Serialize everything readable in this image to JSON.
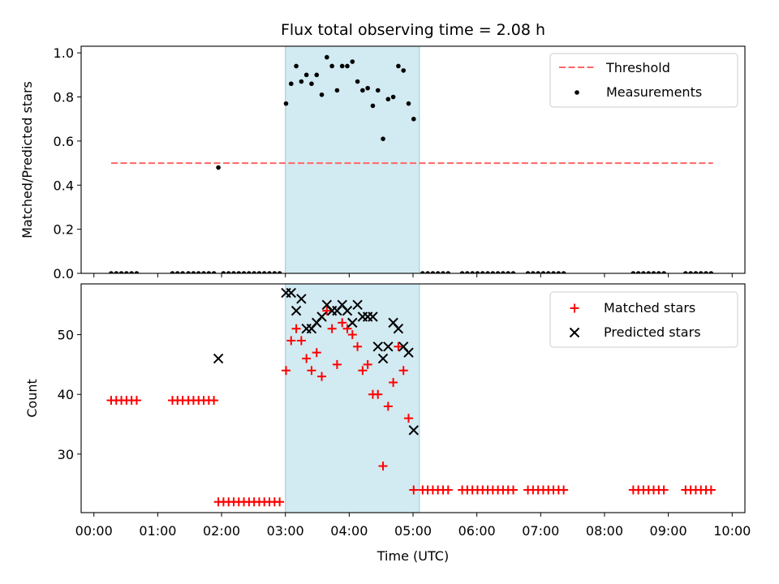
{
  "chart_data": {
    "title": "Flux total observing time = 2.08 h",
    "xlabel": "Time (UTC)",
    "xlim": [
      -0.2,
      10.2
    ],
    "xtick_values": [
      0,
      1,
      2,
      3,
      4,
      5,
      6,
      7,
      8,
      9,
      10
    ],
    "xtick_labels": [
      "00:00",
      "01:00",
      "02:00",
      "03:00",
      "04:00",
      "05:00",
      "06:00",
      "07:00",
      "08:00",
      "09:00",
      "10:00"
    ],
    "highlight_span": [
      3.0,
      5.1
    ],
    "colors": {
      "threshold": "#ff6666",
      "measurement": "#000000",
      "matched": "#ff0000",
      "predicted": "#000000",
      "span": "#add8e6",
      "span_edge": "#9ccad8"
    },
    "panels": [
      {
        "type": "scatter",
        "ylabel": "Matched/Predicted stars",
        "ylim": [
          0,
          1.03
        ],
        "ytick_values": [
          0.0,
          0.2,
          0.4,
          0.6,
          0.8,
          1.0
        ],
        "ytick_labels": [
          "0.0",
          "0.2",
          "0.4",
          "0.6",
          "0.8",
          "1.0"
        ],
        "threshold": {
          "label": "Threshold",
          "y": 0.5,
          "x_range": [
            0.27,
            9.7
          ]
        },
        "measurements": {
          "label": "Measurements",
          "points": [
            [
              0.27,
              0
            ],
            [
              0.35,
              0
            ],
            [
              0.43,
              0
            ],
            [
              0.51,
              0
            ],
            [
              0.59,
              0
            ],
            [
              0.67,
              0
            ],
            [
              1.23,
              0
            ],
            [
              1.31,
              0
            ],
            [
              1.39,
              0
            ],
            [
              1.48,
              0
            ],
            [
              1.56,
              0
            ],
            [
              1.64,
              0
            ],
            [
              1.72,
              0
            ],
            [
              1.8,
              0
            ],
            [
              1.88,
              0
            ],
            [
              1.95,
              0.48
            ],
            [
              2.03,
              0
            ],
            [
              2.11,
              0
            ],
            [
              2.19,
              0
            ],
            [
              2.27,
              0
            ],
            [
              2.35,
              0
            ],
            [
              2.43,
              0
            ],
            [
              2.51,
              0
            ],
            [
              2.59,
              0
            ],
            [
              2.67,
              0
            ],
            [
              2.75,
              0
            ],
            [
              2.83,
              0
            ],
            [
              2.91,
              0
            ],
            [
              3.01,
              0.77
            ],
            [
              3.09,
              0.86
            ],
            [
              3.17,
              0.94
            ],
            [
              3.25,
              0.87
            ],
            [
              3.33,
              0.9
            ],
            [
              3.41,
              0.86
            ],
            [
              3.49,
              0.9
            ],
            [
              3.57,
              0.81
            ],
            [
              3.65,
              0.98
            ],
            [
              3.73,
              0.94
            ],
            [
              3.81,
              0.83
            ],
            [
              3.89,
              0.94
            ],
            [
              3.97,
              0.94
            ],
            [
              4.05,
              0.96
            ],
            [
              4.13,
              0.87
            ],
            [
              4.21,
              0.83
            ],
            [
              4.29,
              0.84
            ],
            [
              4.37,
              0.76
            ],
            [
              4.45,
              0.83
            ],
            [
              4.53,
              0.61
            ],
            [
              4.61,
              0.79
            ],
            [
              4.69,
              0.8
            ],
            [
              4.77,
              0.94
            ],
            [
              4.85,
              0.92
            ],
            [
              4.93,
              0.77
            ],
            [
              5.01,
              0.7
            ],
            [
              5.15,
              0
            ],
            [
              5.23,
              0
            ],
            [
              5.31,
              0
            ],
            [
              5.39,
              0
            ],
            [
              5.47,
              0
            ],
            [
              5.55,
              0
            ],
            [
              5.77,
              0
            ],
            [
              5.85,
              0
            ],
            [
              5.93,
              0
            ],
            [
              6.01,
              0
            ],
            [
              6.09,
              0
            ],
            [
              6.17,
              0
            ],
            [
              6.25,
              0
            ],
            [
              6.33,
              0
            ],
            [
              6.41,
              0
            ],
            [
              6.49,
              0
            ],
            [
              6.57,
              0
            ],
            [
              6.8,
              0
            ],
            [
              6.88,
              0
            ],
            [
              6.96,
              0
            ],
            [
              7.04,
              0
            ],
            [
              7.12,
              0
            ],
            [
              7.2,
              0
            ],
            [
              7.28,
              0
            ],
            [
              7.36,
              0
            ],
            [
              8.45,
              0
            ],
            [
              8.53,
              0
            ],
            [
              8.61,
              0
            ],
            [
              8.69,
              0
            ],
            [
              8.77,
              0
            ],
            [
              8.85,
              0
            ],
            [
              8.93,
              0
            ],
            [
              9.27,
              0
            ],
            [
              9.35,
              0
            ],
            [
              9.43,
              0
            ],
            [
              9.51,
              0
            ],
            [
              9.59,
              0
            ],
            [
              9.67,
              0
            ]
          ]
        }
      },
      {
        "type": "scatter",
        "ylabel": "Count",
        "ylim": [
          20.2,
          58.5
        ],
        "ytick_values": [
          30,
          40,
          50
        ],
        "ytick_labels": [
          "30",
          "40",
          "50"
        ],
        "matched": {
          "label": "Matched stars",
          "points": [
            [
              0.27,
              39
            ],
            [
              0.35,
              39
            ],
            [
              0.43,
              39
            ],
            [
              0.51,
              39
            ],
            [
              0.59,
              39
            ],
            [
              0.67,
              39
            ],
            [
              1.23,
              39
            ],
            [
              1.31,
              39
            ],
            [
              1.39,
              39
            ],
            [
              1.48,
              39
            ],
            [
              1.56,
              39
            ],
            [
              1.64,
              39
            ],
            [
              1.72,
              39
            ],
            [
              1.8,
              39
            ],
            [
              1.88,
              39
            ],
            [
              1.95,
              22
            ],
            [
              2.03,
              22
            ],
            [
              2.11,
              22
            ],
            [
              2.19,
              22
            ],
            [
              2.27,
              22
            ],
            [
              2.35,
              22
            ],
            [
              2.43,
              22
            ],
            [
              2.51,
              22
            ],
            [
              2.59,
              22
            ],
            [
              2.67,
              22
            ],
            [
              2.75,
              22
            ],
            [
              2.83,
              22
            ],
            [
              2.91,
              22
            ],
            [
              3.01,
              44
            ],
            [
              3.09,
              49
            ],
            [
              3.17,
              51
            ],
            [
              3.25,
              49
            ],
            [
              3.33,
              46
            ],
            [
              3.41,
              44
            ],
            [
              3.49,
              47
            ],
            [
              3.57,
              43
            ],
            [
              3.65,
              54
            ],
            [
              3.73,
              51
            ],
            [
              3.81,
              45
            ],
            [
              3.89,
              52
            ],
            [
              3.97,
              51
            ],
            [
              4.05,
              50
            ],
            [
              4.13,
              48
            ],
            [
              4.21,
              44
            ],
            [
              4.29,
              45
            ],
            [
              4.37,
              40
            ],
            [
              4.45,
              40
            ],
            [
              4.53,
              28
            ],
            [
              4.61,
              38
            ],
            [
              4.69,
              42
            ],
            [
              4.77,
              48
            ],
            [
              4.85,
              44
            ],
            [
              4.93,
              36
            ],
            [
              5.01,
              24
            ],
            [
              5.15,
              24
            ],
            [
              5.23,
              24
            ],
            [
              5.31,
              24
            ],
            [
              5.39,
              24
            ],
            [
              5.47,
              24
            ],
            [
              5.55,
              24
            ],
            [
              5.77,
              24
            ],
            [
              5.85,
              24
            ],
            [
              5.93,
              24
            ],
            [
              6.01,
              24
            ],
            [
              6.09,
              24
            ],
            [
              6.17,
              24
            ],
            [
              6.25,
              24
            ],
            [
              6.33,
              24
            ],
            [
              6.41,
              24
            ],
            [
              6.49,
              24
            ],
            [
              6.57,
              24
            ],
            [
              6.8,
              24
            ],
            [
              6.88,
              24
            ],
            [
              6.96,
              24
            ],
            [
              7.04,
              24
            ],
            [
              7.12,
              24
            ],
            [
              7.2,
              24
            ],
            [
              7.28,
              24
            ],
            [
              7.36,
              24
            ],
            [
              8.45,
              24
            ],
            [
              8.53,
              24
            ],
            [
              8.61,
              24
            ],
            [
              8.69,
              24
            ],
            [
              8.77,
              24
            ],
            [
              8.85,
              24
            ],
            [
              8.93,
              24
            ],
            [
              9.27,
              24
            ],
            [
              9.35,
              24
            ],
            [
              9.43,
              24
            ],
            [
              9.51,
              24
            ],
            [
              9.59,
              24
            ],
            [
              9.67,
              24
            ]
          ]
        },
        "predicted": {
          "label": "Predicted stars",
          "points": [
            [
              1.95,
              46
            ],
            [
              3.01,
              57
            ],
            [
              3.09,
              57
            ],
            [
              3.17,
              54
            ],
            [
              3.25,
              56
            ],
            [
              3.33,
              51
            ],
            [
              3.41,
              51
            ],
            [
              3.49,
              52
            ],
            [
              3.57,
              53
            ],
            [
              3.65,
              55
            ],
            [
              3.73,
              54
            ],
            [
              3.81,
              54
            ],
            [
              3.89,
              55
            ],
            [
              3.97,
              54
            ],
            [
              4.05,
              52
            ],
            [
              4.13,
              55
            ],
            [
              4.21,
              53
            ],
            [
              4.29,
              53
            ],
            [
              4.37,
              53
            ],
            [
              4.45,
              48
            ],
            [
              4.53,
              46
            ],
            [
              4.61,
              48
            ],
            [
              4.69,
              52
            ],
            [
              4.77,
              51
            ],
            [
              4.85,
              48
            ],
            [
              4.93,
              47
            ],
            [
              5.01,
              34
            ]
          ]
        }
      }
    ]
  }
}
